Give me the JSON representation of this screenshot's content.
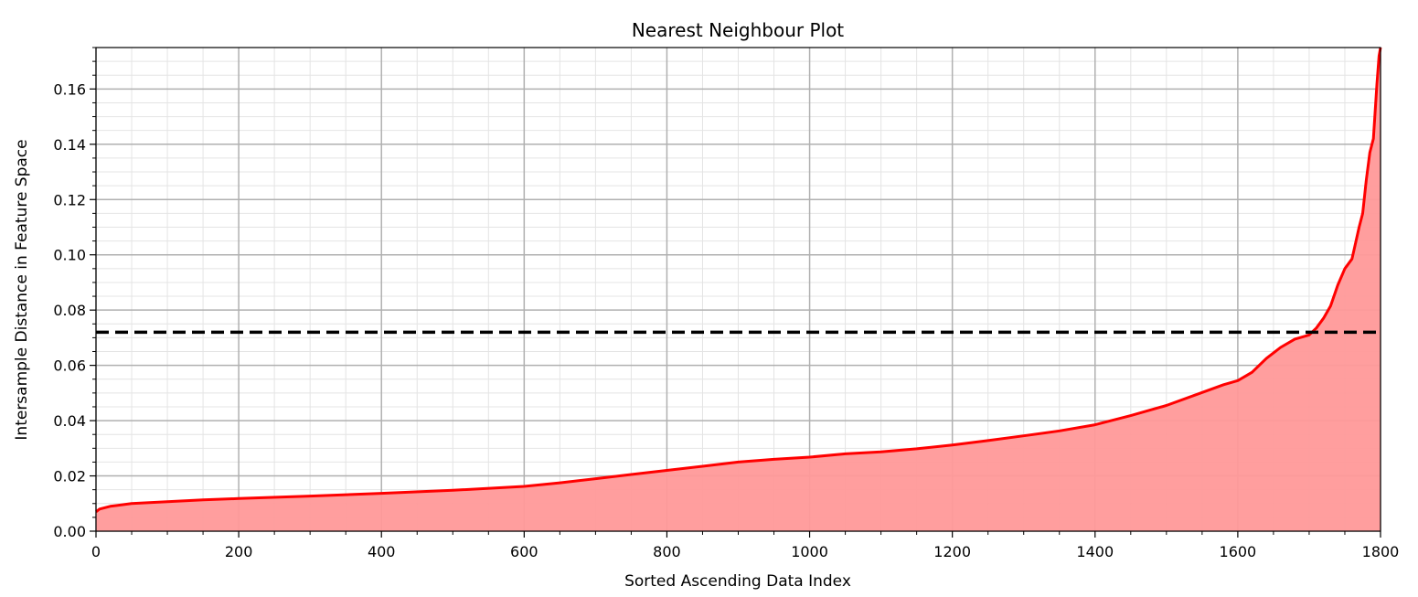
{
  "chart_data": {
    "type": "area",
    "title": "Nearest Neighbour Plot",
    "xlabel": "Sorted Ascending Data Index",
    "ylabel": "Intersample Distance in Feature Space",
    "xlim": [
      0,
      1800
    ],
    "ylim": [
      0,
      0.175
    ],
    "x_ticks": [
      "0",
      "200",
      "400",
      "600",
      "800",
      "1000",
      "1200",
      "1400",
      "1600",
      "1800"
    ],
    "y_ticks": [
      "0.00",
      "0.02",
      "0.04",
      "0.06",
      "0.08",
      "0.10",
      "0.12",
      "0.14",
      "0.16"
    ],
    "grid": {
      "major": true,
      "minor": true
    },
    "series": [
      {
        "x": [
          0,
          5,
          20,
          50,
          100,
          150,
          200,
          300,
          400,
          500,
          600,
          650,
          700,
          750,
          800,
          850,
          900,
          950,
          1000,
          1050,
          1100,
          1150,
          1200,
          1250,
          1300,
          1350,
          1400,
          1450,
          1500,
          1550,
          1580,
          1600,
          1620,
          1640,
          1660,
          1680,
          1700,
          1710,
          1720,
          1730,
          1740,
          1750,
          1760,
          1770,
          1775,
          1780,
          1785,
          1790,
          1795,
          1798,
          1800
        ],
        "y": [
          0.007,
          0.008,
          0.009,
          0.01,
          0.0107,
          0.0113,
          0.0118,
          0.0127,
          0.0137,
          0.0148,
          0.0162,
          0.0175,
          0.019,
          0.0205,
          0.022,
          0.0235,
          0.025,
          0.026,
          0.0268,
          0.028,
          0.0287,
          0.0298,
          0.0312,
          0.0328,
          0.0345,
          0.0363,
          0.0385,
          0.0418,
          0.0455,
          0.0502,
          0.053,
          0.0545,
          0.0575,
          0.0625,
          0.0665,
          0.0695,
          0.071,
          0.0735,
          0.077,
          0.0815,
          0.089,
          0.095,
          0.0985,
          0.11,
          0.115,
          0.127,
          0.137,
          0.142,
          0.162,
          0.172,
          0.175
        ]
      }
    ],
    "threshold": {
      "y": 0.072,
      "style": "dashed",
      "color": "#000000"
    },
    "colors": {
      "line": "#ff0000",
      "fill": "#ff9999",
      "grid_major": "#b0b0b0",
      "grid_minor": "#e4e4e4"
    }
  }
}
